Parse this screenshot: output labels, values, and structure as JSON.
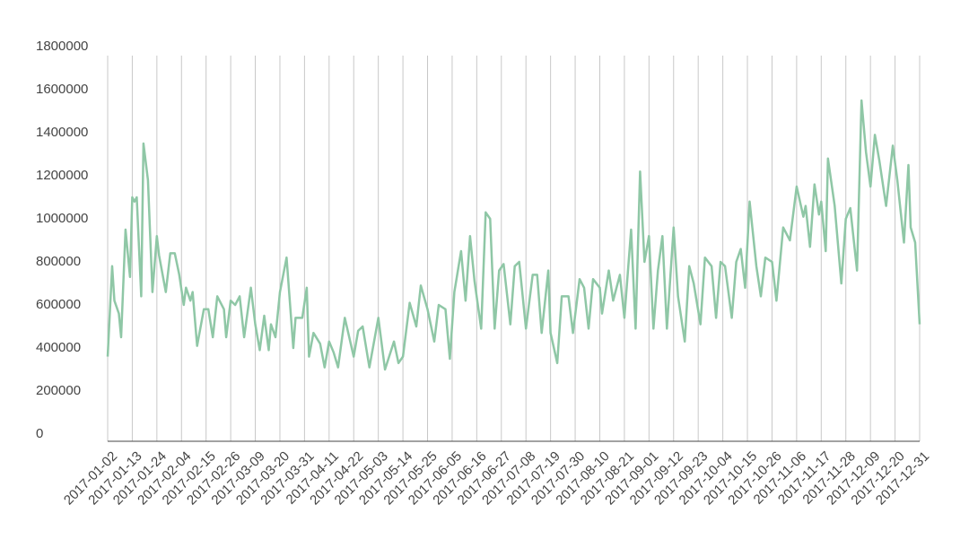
{
  "chart_data": {
    "type": "line",
    "xlim": [
      "2017-01-02",
      "2017-12-31"
    ],
    "xticks": [
      "2017-01-02",
      "2017-01-13",
      "2017-01-24",
      "2017-02-04",
      "2017-02-15",
      "2017-02-26",
      "2017-03-09",
      "2017-03-20",
      "2017-03-31",
      "2017-04-11",
      "2017-04-22",
      "2017-05-03",
      "2017-05-14",
      "2017-05-25",
      "2017-06-05",
      "2017-06-16",
      "2017-06-27",
      "2017-07-08",
      "2017-07-19",
      "2017-07-30",
      "2017-08-10",
      "2017-08-21",
      "2017-09-01",
      "2017-09-12",
      "2017-09-23",
      "2017-10-04",
      "2017-10-15",
      "2017-10-26",
      "2017-11-06",
      "2017-11-17",
      "2017-11-28",
      "2017-12-09",
      "2017-12-20",
      "2017-12-31"
    ],
    "ylim": [
      0,
      1800000
    ],
    "yticks": [
      0,
      200000,
      400000,
      600000,
      800000,
      1000000,
      1200000,
      1400000,
      1600000,
      1800000
    ],
    "grid": true,
    "x": [
      "2017-01-02",
      "2017-01-04",
      "2017-01-05",
      "2017-01-07",
      "2017-01-08",
      "2017-01-10",
      "2017-01-12",
      "2017-01-13",
      "2017-01-14",
      "2017-01-15",
      "2017-01-17",
      "2017-01-18",
      "2017-01-20",
      "2017-01-22",
      "2017-01-24",
      "2017-01-25",
      "2017-01-28",
      "2017-01-30",
      "2017-02-01",
      "2017-02-03",
      "2017-02-05",
      "2017-02-06",
      "2017-02-08",
      "2017-02-09",
      "2017-02-11",
      "2017-02-14",
      "2017-02-16",
      "2017-02-18",
      "2017-02-20",
      "2017-02-23",
      "2017-02-24",
      "2017-02-26",
      "2017-02-28",
      "2017-03-02",
      "2017-03-04",
      "2017-03-07",
      "2017-03-09",
      "2017-03-11",
      "2017-03-13",
      "2017-03-15",
      "2017-03-16",
      "2017-03-18",
      "2017-03-20",
      "2017-03-23",
      "2017-03-26",
      "2017-03-27",
      "2017-03-30",
      "2017-04-01",
      "2017-04-02",
      "2017-04-04",
      "2017-04-07",
      "2017-04-09",
      "2017-04-11",
      "2017-04-13",
      "2017-04-15",
      "2017-04-18",
      "2017-04-22",
      "2017-04-24",
      "2017-04-26",
      "2017-04-29",
      "2017-05-03",
      "2017-05-06",
      "2017-05-10",
      "2017-05-12",
      "2017-05-14",
      "2017-05-17",
      "2017-05-20",
      "2017-05-22",
      "2017-05-25",
      "2017-05-28",
      "2017-05-30",
      "2017-06-02",
      "2017-06-04",
      "2017-06-06",
      "2017-06-09",
      "2017-06-11",
      "2017-06-13",
      "2017-06-15",
      "2017-06-18",
      "2017-06-20",
      "2017-06-22",
      "2017-06-24",
      "2017-06-26",
      "2017-06-28",
      "2017-07-01",
      "2017-07-03",
      "2017-07-05",
      "2017-07-08",
      "2017-07-11",
      "2017-07-13",
      "2017-07-15",
      "2017-07-18",
      "2017-07-19",
      "2017-07-22",
      "2017-07-24",
      "2017-07-27",
      "2017-07-29",
      "2017-08-01",
      "2017-08-03",
      "2017-08-05",
      "2017-08-07",
      "2017-08-10",
      "2017-08-11",
      "2017-08-14",
      "2017-08-16",
      "2017-08-19",
      "2017-08-21",
      "2017-08-24",
      "2017-08-26",
      "2017-08-28",
      "2017-08-30",
      "2017-09-01",
      "2017-09-03",
      "2017-09-05",
      "2017-09-07",
      "2017-09-09",
      "2017-09-12",
      "2017-09-14",
      "2017-09-17",
      "2017-09-19",
      "2017-09-21",
      "2017-09-24",
      "2017-09-26",
      "2017-09-29",
      "2017-10-01",
      "2017-10-03",
      "2017-10-05",
      "2017-10-08",
      "2017-10-10",
      "2017-10-12",
      "2017-10-14",
      "2017-10-16",
      "2017-10-19",
      "2017-10-21",
      "2017-10-23",
      "2017-10-26",
      "2017-10-28",
      "2017-10-31",
      "2017-11-03",
      "2017-11-06",
      "2017-11-09",
      "2017-11-10",
      "2017-11-12",
      "2017-11-14",
      "2017-11-16",
      "2017-11-17",
      "2017-11-19",
      "2017-11-20",
      "2017-11-23",
      "2017-11-26",
      "2017-11-28",
      "2017-11-30",
      "2017-12-03",
      "2017-12-05",
      "2017-12-07",
      "2017-12-09",
      "2017-12-11",
      "2017-12-13",
      "2017-12-16",
      "2017-12-19",
      "2017-12-21",
      "2017-12-24",
      "2017-12-26",
      "2017-12-27",
      "2017-12-29",
      "2017-12-31"
    ],
    "series": [
      {
        "color": "#8fc7a6",
        "values": [
          360000,
          780000,
          620000,
          560000,
          450000,
          950000,
          730000,
          1100000,
          1080000,
          1100000,
          640000,
          1350000,
          1180000,
          660000,
          920000,
          830000,
          660000,
          840000,
          840000,
          740000,
          600000,
          680000,
          620000,
          660000,
          410000,
          580000,
          580000,
          450000,
          640000,
          580000,
          450000,
          620000,
          600000,
          640000,
          450000,
          680000,
          510000,
          390000,
          550000,
          390000,
          510000,
          450000,
          660000,
          820000,
          400000,
          540000,
          540000,
          680000,
          360000,
          470000,
          420000,
          310000,
          430000,
          380000,
          310000,
          540000,
          360000,
          480000,
          500000,
          310000,
          540000,
          300000,
          430000,
          330000,
          360000,
          610000,
          500000,
          690000,
          580000,
          430000,
          600000,
          580000,
          350000,
          660000,
          850000,
          620000,
          920000,
          710000,
          490000,
          1030000,
          1000000,
          490000,
          760000,
          790000,
          510000,
          780000,
          800000,
          490000,
          740000,
          740000,
          470000,
          760000,
          470000,
          330000,
          640000,
          640000,
          470000,
          720000,
          680000,
          490000,
          720000,
          680000,
          560000,
          760000,
          620000,
          740000,
          540000,
          950000,
          490000,
          1220000,
          800000,
          920000,
          490000,
          760000,
          920000,
          490000,
          960000,
          640000,
          430000,
          780000,
          700000,
          510000,
          820000,
          780000,
          540000,
          800000,
          780000,
          540000,
          800000,
          860000,
          680000,
          1080000,
          780000,
          640000,
          820000,
          800000,
          620000,
          960000,
          900000,
          1150000,
          1010000,
          1060000,
          870000,
          1160000,
          1020000,
          1080000,
          850000,
          1280000,
          1060000,
          700000,
          1000000,
          1050000,
          760000,
          1550000,
          1310000,
          1150000,
          1390000,
          1270000,
          1060000,
          1340000,
          1180000,
          890000,
          1250000,
          960000,
          890000,
          510000
        ]
      }
    ]
  }
}
